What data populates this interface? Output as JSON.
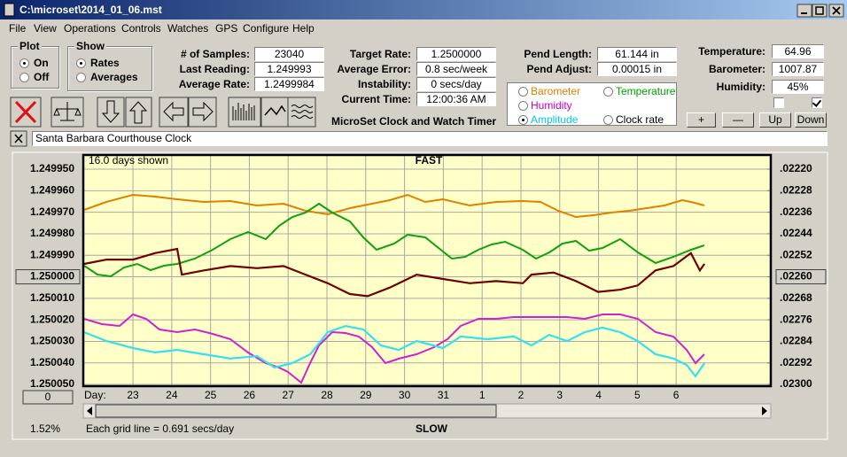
{
  "window": {
    "title": "C:\\microset\\2014_01_06.mst"
  },
  "menu": [
    "File",
    "View",
    "Operations",
    "Controls",
    "Watches",
    "GPS",
    "Configure",
    "Help"
  ],
  "plot_group": {
    "label": "Plot",
    "options": [
      "On",
      "Off"
    ],
    "selected": 0
  },
  "show_group": {
    "label": "Show",
    "options": [
      "Rates",
      "Averages"
    ],
    "selected": 0
  },
  "readings": [
    {
      "label": "# of Samples:",
      "value": "23040"
    },
    {
      "label": "Last Reading:",
      "value": "1.249993"
    },
    {
      "label": "Average Rate:",
      "value": "1.2499984"
    },
    {
      "label": "Target Rate:",
      "value": "1.2500000"
    },
    {
      "label": "Average Error:",
      "value": "0.8 sec/week"
    },
    {
      "label": "Instability:",
      "value": "0 secs/day"
    },
    {
      "label": "Current Time:",
      "value": "12:00:36 AM"
    },
    {
      "label": "Pend Length:",
      "value": "61.144 in"
    },
    {
      "label": "Pend Adjust:",
      "value": "0.00015 in"
    },
    {
      "label": "Temperature:",
      "value": "64.96"
    },
    {
      "label": "Barometer:",
      "value": "1007.87"
    },
    {
      "label": "Humidity:",
      "value": "45%"
    }
  ],
  "trace_selector": [
    {
      "label": "Barometer",
      "color": "#e08000",
      "selected": false
    },
    {
      "label": "Temperature",
      "color": "#00a000",
      "selected": false
    },
    {
      "label": "Humidity",
      "color": "#c000c0",
      "selected": false
    },
    {
      "label": "Amplitude",
      "color": "#00c8e8",
      "selected": true
    },
    {
      "label": "Clock rate",
      "color": "#000000",
      "selected": false
    }
  ],
  "caption": "MicroSet Clock and Watch Timer",
  "buttons": [
    "+",
    "—",
    "Up",
    "Down"
  ],
  "checkboxes": [
    false,
    true
  ],
  "watch_name": "Santa Barbara Courthouse Clock",
  "chart_data": {
    "type": "line",
    "title": "FAST",
    "top_left": "16.0 days shown",
    "bottom_label": "SLOW",
    "footer_left": "1.52%",
    "footnote": "Each grid line = 0.691 secs/day",
    "x_label": "Day:",
    "zero_button": "0",
    "grid": true,
    "y_inverted": true,
    "xlim": [
      21.72,
      39.44
    ],
    "xticks": [
      23,
      24,
      25,
      26,
      27,
      28,
      29,
      30,
      31,
      {
        "value": 32,
        "label": "1"
      },
      {
        "value": 33,
        "label": "2"
      },
      {
        "value": 34,
        "label": "3"
      },
      {
        "value": 35,
        "label": "4"
      },
      {
        "value": 36,
        "label": "5"
      },
      {
        "value": 37,
        "label": "6"
      }
    ],
    "ylim": [
      1.2499434,
      1.2500508
    ],
    "yticks": [
      {
        "value": 1.24995,
        "label": "1.249950"
      },
      {
        "value": 1.24996,
        "label": "1.249960"
      },
      {
        "value": 1.24997,
        "label": "1.249970"
      },
      {
        "value": 1.24998,
        "label": "1.249980"
      },
      {
        "value": 1.24999,
        "label": "1.249990"
      },
      {
        "value": 1.25,
        "label": "1.250000"
      },
      {
        "value": 1.25001,
        "label": "1.250010"
      },
      {
        "value": 1.25002,
        "label": "1.250020"
      },
      {
        "value": 1.25003,
        "label": "1.250030"
      },
      {
        "value": 1.25004,
        "label": "1.250040"
      },
      {
        "value": 1.25005,
        "label": "1.250050"
      }
    ],
    "y2lim": [
      0.0221473,
      0.0230066
    ],
    "y2ticks": [
      {
        "value": 0.0222,
        "label": ".02220"
      },
      {
        "value": 0.02228,
        "label": ".02228"
      },
      {
        "value": 0.02236,
        "label": ".02236"
      },
      {
        "value": 0.02244,
        "label": ".02244"
      },
      {
        "value": 0.02252,
        "label": ".02252"
      },
      {
        "value": 0.0226,
        "label": ".02260"
      },
      {
        "value": 0.02268,
        "label": ".02268"
      },
      {
        "value": 0.02276,
        "label": ".02276"
      },
      {
        "value": 0.02284,
        "label": ".02284"
      },
      {
        "value": 0.02292,
        "label": ".02292"
      },
      {
        "value": 0.023,
        "label": ".02300"
      }
    ],
    "series": [
      {
        "name": "Clock rate",
        "color": "#700000",
        "axis": "y",
        "x": [
          21.74,
          22.32,
          23,
          23.57,
          24.14,
          24.26,
          24.83,
          25.51,
          26.2,
          26.88,
          27.45,
          28.02,
          28.59,
          29.05,
          29.62,
          30.31,
          30.99,
          31.68,
          32.36,
          33.05,
          33.27,
          33.84,
          34.42,
          34.99,
          35.56,
          36.01,
          36.47,
          36.93,
          37.38,
          37.61,
          37.73
        ],
        "values": [
          1.249994,
          1.249992,
          1.249992,
          1.249989,
          1.249987,
          1.249999,
          1.249997,
          1.249995,
          1.249996,
          1.249995,
          1.249999,
          1.250003,
          1.250008,
          1.250009,
          1.250005,
          1.249999,
          1.250001,
          1.250003,
          1.250002,
          1.250003,
          1.249999,
          1.249998,
          1.250002,
          1.250007,
          1.250006,
          1.250004,
          1.249997,
          1.249995,
          1.249989,
          1.249997,
          1.249994
        ]
      },
      {
        "name": "Amplitude",
        "color": "#33e0f0",
        "axis": "y2",
        "x": [
          21.74,
          22.32,
          23,
          23.57,
          24.14,
          24.83,
          25.51,
          26.2,
          26.65,
          27.11,
          27.57,
          28.02,
          28.48,
          28.94,
          29.39,
          29.85,
          30.31,
          30.99,
          31.45,
          32.13,
          32.82,
          33.27,
          33.73,
          34.19,
          34.64,
          35.1,
          35.56,
          36.01,
          36.47,
          36.93,
          37.27,
          37.5,
          37.73
        ],
        "values": [
          0.022806,
          0.022839,
          0.022865,
          0.022881,
          0.022872,
          0.022888,
          0.022904,
          0.022895,
          0.022937,
          0.022921,
          0.022888,
          0.022806,
          0.022783,
          0.022796,
          0.022855,
          0.022872,
          0.022839,
          0.022865,
          0.022822,
          0.022832,
          0.022822,
          0.022855,
          0.022816,
          0.022839,
          0.022806,
          0.022789,
          0.022806,
          0.022839,
          0.022888,
          0.022904,
          0.022928,
          0.02297,
          0.022921
        ]
      }
    ]
  }
}
